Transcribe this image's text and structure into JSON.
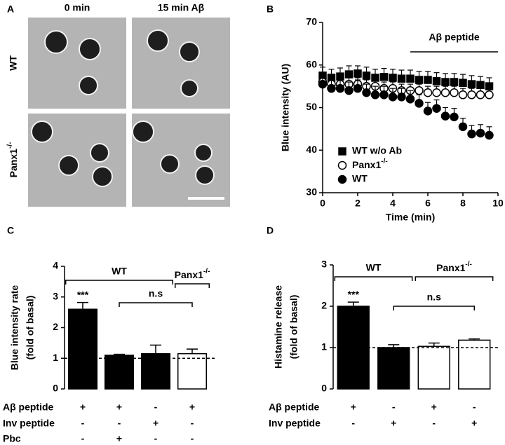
{
  "panel_labels": [
    "A",
    "B",
    "C",
    "D"
  ],
  "image_panel": {
    "columns": [
      "0 min",
      "15 min Aβ"
    ],
    "rows": [
      "WT",
      "Panx1-/-"
    ]
  },
  "chart_data": [
    {
      "type": "line",
      "ylabel": "Blue intensity (AU)",
      "xlabel": "Time (min)",
      "xlim": [
        0,
        10
      ],
      "xticks": [
        0,
        2,
        4,
        6,
        8,
        10
      ],
      "ylim": [
        30,
        70
      ],
      "yticks": [
        30,
        40,
        50,
        60,
        70
      ],
      "annotation": {
        "text": "Aβ peptide",
        "x_range": [
          5,
          10
        ]
      },
      "x": [
        0,
        0.5,
        1,
        1.5,
        2,
        2.5,
        3,
        3.5,
        4,
        4.5,
        5,
        5.5,
        6,
        6.5,
        7,
        7.5,
        8,
        8.5,
        9,
        9.5
      ],
      "series": [
        {
          "name": "WT w/o Ab",
          "marker": "square",
          "color": "#000000",
          "fill": "#000000",
          "values": [
            57.5,
            57,
            57.3,
            57.8,
            58,
            57.5,
            57,
            57.2,
            57,
            56.8,
            56.8,
            56.5,
            56.5,
            56.2,
            56,
            56,
            55.8,
            55.5,
            55.3,
            55
          ],
          "errors": [
            2,
            2,
            2,
            2,
            1.8,
            2,
            2,
            2,
            2,
            2,
            2,
            2,
            2,
            2,
            2,
            2,
            2,
            2,
            2,
            2
          ]
        },
        {
          "name": "Panx1-/-",
          "marker": "circle",
          "color": "#000000",
          "fill": "#ffffff",
          "values": [
            56,
            55.5,
            55.5,
            55.5,
            55.5,
            55,
            55,
            54.5,
            54.5,
            54,
            54,
            54,
            53.5,
            53.5,
            53.5,
            53.5,
            53,
            53,
            53,
            53
          ],
          "errors": [
            1.5,
            1.5,
            1.5,
            1.5,
            1.5,
            1.5,
            1.5,
            1.5,
            1.5,
            1.5,
            1.5,
            1.5,
            1.5,
            1.5,
            1.5,
            1.5,
            1.5,
            1.5,
            1.5,
            1.5
          ]
        },
        {
          "name": "WT",
          "marker": "circle",
          "color": "#000000",
          "fill": "#000000",
          "values": [
            55.5,
            54.5,
            54.5,
            54,
            54.5,
            53.5,
            53,
            53,
            52.5,
            52.5,
            52,
            51,
            49.2,
            49.8,
            48,
            47.8,
            45.5,
            43.8,
            44,
            43.5
          ],
          "errors": [
            2,
            2,
            2,
            2,
            2,
            2,
            2,
            2,
            2,
            2,
            2,
            2,
            2,
            2,
            2,
            2,
            2,
            2,
            2,
            2
          ]
        }
      ]
    },
    {
      "type": "bar",
      "ylabel": [
        "Blue intensity rate",
        "(fold of basal)"
      ],
      "ylim": [
        0,
        4
      ],
      "yticks": [
        0,
        1,
        2,
        3,
        4
      ],
      "reference_line": 1,
      "values": [
        2.6,
        1.1,
        1.15,
        1.15
      ],
      "errors": [
        0.22,
        0.03,
        0.28,
        0.15
      ],
      "colors": [
        "#000000",
        "#000000",
        "#000000",
        "#ffffff"
      ],
      "annotations": [
        {
          "text": "***",
          "bar": 0
        }
      ],
      "groups": [
        {
          "label": "WT",
          "from": 0,
          "to": 2
        },
        {
          "label": "Panx1-/-",
          "from": 3,
          "to": 3
        },
        {
          "label": "n.s",
          "from": 1,
          "to": 3
        }
      ],
      "conditions": [
        {
          "label": "Aβ peptide",
          "signs": [
            "+",
            "+",
            "-",
            "+"
          ]
        },
        {
          "label": "Inv peptide",
          "signs": [
            "-",
            "-",
            "+",
            "-"
          ]
        },
        {
          "label": "Pbc",
          "signs": [
            "-",
            "+",
            "-",
            "-"
          ]
        }
      ]
    },
    {
      "type": "bar",
      "ylabel": [
        "Histamine release",
        "(fold of basal)"
      ],
      "ylim": [
        0,
        3
      ],
      "yticks": [
        0,
        1,
        2,
        3
      ],
      "reference_line": 1,
      "values": [
        2.0,
        1.0,
        1.03,
        1.18
      ],
      "errors": [
        0.1,
        0.07,
        0.08,
        0.03
      ],
      "colors": [
        "#000000",
        "#000000",
        "#ffffff",
        "#ffffff"
      ],
      "annotations": [
        {
          "text": "***",
          "bar": 0
        }
      ],
      "groups": [
        {
          "label": "WT",
          "from": 0,
          "to": 1
        },
        {
          "label": "Panx1-/-",
          "from": 2,
          "to": 3
        },
        {
          "label": "n.s",
          "from": 1,
          "to": 3
        }
      ],
      "conditions": [
        {
          "label": "Aβ peptide",
          "signs": [
            "+",
            "-",
            "+",
            "-"
          ]
        },
        {
          "label": "Inv peptide",
          "signs": [
            "-",
            "+",
            "-",
            "+"
          ]
        }
      ]
    }
  ]
}
